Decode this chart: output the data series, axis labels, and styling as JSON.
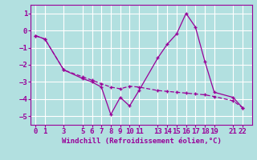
{
  "line1_x": [
    0,
    1,
    3,
    5,
    6,
    7,
    8,
    9,
    10,
    11,
    13,
    14,
    15,
    16,
    17,
    18,
    19,
    21,
    22
  ],
  "line1_y": [
    -0.3,
    -0.5,
    -2.3,
    -2.8,
    -3.0,
    -3.3,
    -4.9,
    -3.9,
    -4.4,
    -3.5,
    -1.6,
    -0.8,
    -0.2,
    1.0,
    0.2,
    -1.8,
    -3.6,
    -3.9,
    -4.5
  ],
  "line2_x": [
    0,
    1,
    3,
    5,
    6,
    7,
    8,
    9,
    10,
    11,
    13,
    14,
    15,
    16,
    17,
    18,
    19,
    21,
    22
  ],
  "line2_y": [
    -0.3,
    -0.5,
    -2.3,
    -2.7,
    -2.9,
    -3.1,
    -3.3,
    -3.4,
    -3.25,
    -3.3,
    -3.5,
    -3.55,
    -3.6,
    -3.65,
    -3.7,
    -3.75,
    -3.85,
    -4.1,
    -4.5
  ],
  "line_color": "#990099",
  "bg_color": "#b2e0e0",
  "grid_color": "#ffffff",
  "xlabel": "Windchill (Refroidissement éolien,°C)",
  "xlabel_color": "#990099",
  "ylim": [
    -5.5,
    1.5
  ],
  "xlim": [
    -0.5,
    23
  ],
  "xticks": [
    0,
    1,
    3,
    5,
    6,
    7,
    8,
    9,
    10,
    11,
    13,
    14,
    15,
    16,
    17,
    18,
    19,
    21,
    22
  ],
  "yticks": [
    -5,
    -4,
    -3,
    -2,
    -1,
    0,
    1
  ],
  "tick_color": "#990099",
  "font_size": 6.5
}
